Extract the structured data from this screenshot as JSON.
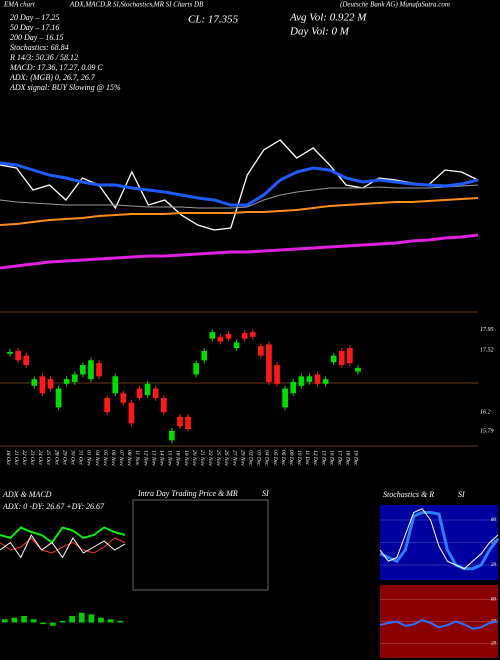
{
  "header": {
    "left": "EMA chart",
    "center": "ADX,MACD,R SI,Stochastics,MR SI Charts DB",
    "right": "(Deutsche Bank AG) MunafaSutra.com"
  },
  "stats": [
    "20 Day – 17.25",
    "50 Day – 17.16",
    "200 Day – 16.15",
    "Stochastics: 68.84",
    "R 14/3: 50.36 / 58.12",
    "MACD: 17.36, 17.27, 0.09 C",
    "ADX: (MGB) 0, 26.7, 26.7",
    "ADX signal: BUY Slowing @ 15%"
  ],
  "close": "CL: 17.355",
  "avg_vol": "Avg Vol: 0.922 M",
  "day_vol": "Day Vol: 0 M",
  "intraday": {
    "title": "Intra Day Trading Price & MR",
    "title2": "SI"
  },
  "chart_data": [
    {
      "type": "line",
      "ylim": [
        14.5,
        18.5
      ],
      "series": [
        {
          "color": "#ffffff",
          "line_width": 1.3,
          "values": [
            17.2,
            17.14,
            16.7,
            16.8,
            16.5,
            16.94,
            16.8,
            16.34,
            17.06,
            16.4,
            16.5,
            16.2,
            16.0,
            15.9,
            15.94,
            17.0,
            17.5,
            17.7,
            17.34,
            17.54,
            17.2,
            16.8,
            16.74,
            16.94,
            16.9,
            16.84,
            16.8,
            17.1,
            17.06,
            16.9
          ]
        },
        {
          "color": "#9a9a9a",
          "line_width": 1,
          "values": [
            16.5,
            16.46,
            16.44,
            16.42,
            16.4,
            16.4,
            16.4,
            16.4,
            16.38,
            16.36,
            16.36,
            16.36,
            16.34,
            16.34,
            16.34,
            16.36,
            16.5,
            16.6,
            16.66,
            16.7,
            16.74,
            16.74,
            16.74,
            16.76,
            16.74,
            16.74,
            16.74,
            16.76,
            16.78,
            16.8
          ]
        },
        {
          "color": "#1e5bff",
          "line_width": 3,
          "values": [
            17.24,
            17.2,
            17.1,
            17.0,
            16.94,
            16.86,
            16.8,
            16.8,
            16.74,
            16.7,
            16.66,
            16.6,
            16.54,
            16.5,
            16.4,
            16.4,
            16.6,
            16.9,
            17.06,
            17.14,
            17.1,
            16.94,
            16.86,
            16.9,
            16.86,
            16.82,
            16.8,
            16.78,
            16.82,
            16.9
          ]
        },
        {
          "color": "#ff8c1a",
          "line_width": 2,
          "values": [
            16.0,
            16.02,
            16.06,
            16.1,
            16.12,
            16.14,
            16.18,
            16.2,
            16.22,
            16.22,
            16.22,
            16.24,
            16.24,
            16.24,
            16.24,
            16.26,
            16.26,
            16.28,
            16.3,
            16.34,
            16.38,
            16.4,
            16.42,
            16.44,
            16.46,
            16.46,
            16.48,
            16.5,
            16.52,
            16.54
          ]
        },
        {
          "color": "#e020e0",
          "line_width": 3,
          "values": [
            15.14,
            15.18,
            15.22,
            15.26,
            15.28,
            15.3,
            15.32,
            15.34,
            15.36,
            15.38,
            15.38,
            15.4,
            15.42,
            15.44,
            15.46,
            15.46,
            15.48,
            15.5,
            15.52,
            15.54,
            15.56,
            15.58,
            15.6,
            15.62,
            15.64,
            15.68,
            15.7,
            15.74,
            15.76,
            15.8
          ]
        }
      ]
    },
    {
      "type": "candlestick",
      "ylim": [
        15.5,
        18.2
      ],
      "yticks": [
        17.95,
        17.52,
        16.2,
        15.79
      ],
      "up_color": "#00dd00",
      "down_color": "#ff1a1a",
      "categories": [
        "18 Oct",
        "21 Oct",
        "22 Oct",
        "23 Oct",
        "24 Oct",
        "25 Oct",
        "28 Oct",
        "29 Oct",
        "30 Oct",
        "31 Oct",
        "01 Nov",
        "04 Nov",
        "05 Nov",
        "06 Nov",
        "07 Nov",
        "08 Nov",
        "11 Nov",
        "12 Nov",
        "13 Nov",
        "14 Nov",
        "15 Nov",
        "18 Nov",
        "19 Nov",
        "20 Nov",
        "21 Nov",
        "22 Nov",
        "25 Nov",
        "26 Nov",
        "27 Nov",
        "29 Nov",
        "02 Dec",
        "03 Dec",
        "04 Dec",
        "05 Dec",
        "06 Dec",
        "09 Dec",
        "10 Dec",
        "11 Dec",
        "12 Dec",
        "13 Dec",
        "16 Dec",
        "17 Dec",
        "18 Dec",
        "19 Dec"
      ],
      "open": [
        17.44,
        17.5,
        17.4,
        16.76,
        16.96,
        16.9,
        16.3,
        16.8,
        16.84,
        17.0,
        16.9,
        17.24,
        16.5,
        16.6,
        16.6,
        16.4,
        16.7,
        16.56,
        16.7,
        16.5,
        15.6,
        16.1,
        16.1,
        17.0,
        17.3,
        17.76,
        17.8,
        17.86,
        17.56,
        17.88,
        17.9,
        17.6,
        17.64,
        17.2,
        16.3,
        16.6,
        16.76,
        16.84,
        17.0,
        16.8,
        17.26,
        17.5,
        17.56,
        17.06
      ],
      "high": [
        17.54,
        17.56,
        17.46,
        16.96,
        17.02,
        16.96,
        16.76,
        16.96,
        17.06,
        17.26,
        17.36,
        17.3,
        16.56,
        17.02,
        16.66,
        16.46,
        16.76,
        16.86,
        16.76,
        16.56,
        15.86,
        16.16,
        16.16,
        17.3,
        17.56,
        17.96,
        17.86,
        17.92,
        17.74,
        17.94,
        17.96,
        17.66,
        17.7,
        17.26,
        16.76,
        16.9,
        17.02,
        17.02,
        17.06,
        16.96,
        17.46,
        17.56,
        17.62,
        17.2
      ],
      "low": [
        17.38,
        17.24,
        17.14,
        16.7,
        16.54,
        16.64,
        16.24,
        16.74,
        16.78,
        16.94,
        16.84,
        16.9,
        16.14,
        16.54,
        16.34,
        15.9,
        16.44,
        16.5,
        16.44,
        16.14,
        15.54,
        15.84,
        15.78,
        16.94,
        17.24,
        17.7,
        17.64,
        17.7,
        17.5,
        17.7,
        17.74,
        17.34,
        16.78,
        16.74,
        16.24,
        16.54,
        16.7,
        16.78,
        16.74,
        16.74,
        17.2,
        17.14,
        17.18,
        17.0
      ],
      "close": [
        17.48,
        17.3,
        17.2,
        16.9,
        16.6,
        16.7,
        16.7,
        16.9,
        17.0,
        17.2,
        17.3,
        16.96,
        16.2,
        16.96,
        16.4,
        15.96,
        16.5,
        16.8,
        16.5,
        16.2,
        15.8,
        15.9,
        15.84,
        17.24,
        17.5,
        17.9,
        17.7,
        17.76,
        17.68,
        17.76,
        17.8,
        17.4,
        16.84,
        16.8,
        16.7,
        16.84,
        16.96,
        16.96,
        16.8,
        16.9,
        17.4,
        17.2,
        17.24,
        17.14
      ]
    },
    {
      "type": "line",
      "title": "ADX & MACD",
      "subtitle": "ADX: 0 -DY: 26.67 +DY: 26.67",
      "ylim": [
        0,
        50
      ],
      "series": [
        {
          "color": "#00ee00",
          "line_width": 2,
          "values": [
            30,
            28,
            35,
            32,
            30,
            25,
            35,
            33,
            28,
            30,
            35,
            32,
            30
          ]
        },
        {
          "color": "#ff3030",
          "line_width": 1,
          "values": [
            25,
            20,
            22,
            28,
            20,
            18,
            22,
            25,
            20,
            18,
            22,
            28,
            25
          ]
        },
        {
          "color": "#ffffff",
          "line_width": 1,
          "values": [
            20,
            25,
            15,
            30,
            20,
            25,
            15,
            28,
            18,
            22,
            26,
            20,
            24
          ]
        }
      ]
    },
    {
      "type": "bar",
      "ylim": [
        -1,
        1
      ],
      "color": "#00cc00",
      "values": [
        0.1,
        0.15,
        0.2,
        0.1,
        -0.05,
        -0.1,
        0.05,
        0.2,
        0.3,
        0.25,
        0.15,
        0.1,
        0.05
      ]
    },
    {
      "type": "line",
      "title": "Stochastics & R",
      "title2": "SI",
      "ylim": [
        0,
        100
      ],
      "yticks": [
        80,
        50,
        20
      ],
      "background": "#0000a0",
      "series": [
        {
          "color": "#2a7fff",
          "line_width": 3,
          "values": [
            35,
            30,
            25,
            40,
            85,
            90,
            90,
            88,
            40,
            20,
            15,
            15,
            20,
            40,
            55
          ]
        },
        {
          "color": "#ffffff",
          "line_width": 1,
          "values": [
            40,
            25,
            30,
            60,
            90,
            95,
            80,
            45,
            25,
            20,
            15,
            25,
            35,
            50,
            60
          ]
        }
      ]
    },
    {
      "type": "line",
      "ylim": [
        0,
        100
      ],
      "yticks": [
        80,
        50,
        20
      ],
      "background": "#8b0000",
      "series": [
        {
          "color": "#2a6fff",
          "line_width": 2,
          "values": [
            45,
            48,
            50,
            44,
            46,
            52,
            48,
            42,
            45,
            50,
            46,
            40,
            42,
            48,
            50
          ]
        }
      ]
    }
  ]
}
